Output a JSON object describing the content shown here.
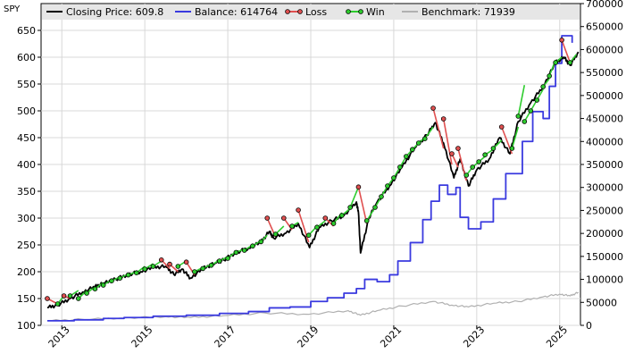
{
  "chart_data": {
    "type": "line",
    "corner_label": "SPY",
    "x_range": [
      "2012-07-01",
      "2025-07-01"
    ],
    "x_ticks": [
      "2013",
      "2015",
      "2017",
      "2019",
      "2021",
      "2023",
      "2025"
    ],
    "left_axis": {
      "ylim": [
        100,
        700
      ],
      "ticks": [
        100,
        150,
        200,
        250,
        300,
        350,
        400,
        450,
        500,
        550,
        600,
        650
      ]
    },
    "right_axis": {
      "ylim": [
        0,
        700000
      ],
      "ticks": [
        0,
        50000,
        100000,
        150000,
        200000,
        250000,
        300000,
        350000,
        400000,
        450000,
        500000,
        550000,
        600000,
        650000,
        700000
      ]
    },
    "grid": true,
    "legend": {
      "placement": "top",
      "entries": [
        {
          "key": "closing",
          "label": "Closing Price: 609.8",
          "color": "#000000"
        },
        {
          "key": "balance",
          "label": "Balance: 614764",
          "color": "#3a3adf"
        },
        {
          "key": "loss",
          "label": "Loss",
          "color": "#e05050"
        },
        {
          "key": "win",
          "label": "Win",
          "color": "#2ecc2e"
        },
        {
          "key": "benchmark",
          "label": "Benchmark: 71939",
          "color": "#b0b0b0"
        }
      ]
    },
    "series": [
      {
        "name": "Closing Price: 609.8",
        "axis": "left",
        "color": "#000000",
        "points": [
          [
            2012.65,
            133
          ],
          [
            2012.9,
            138
          ],
          [
            2013.2,
            150
          ],
          [
            2013.5,
            162
          ],
          [
            2013.8,
            172
          ],
          [
            2014.0,
            178
          ],
          [
            2014.3,
            186
          ],
          [
            2014.6,
            195
          ],
          [
            2014.9,
            200
          ],
          [
            2015.2,
            208
          ],
          [
            2015.5,
            210
          ],
          [
            2015.7,
            195
          ],
          [
            2015.9,
            205
          ],
          [
            2016.1,
            188
          ],
          [
            2016.4,
            206
          ],
          [
            2016.7,
            216
          ],
          [
            2016.9,
            222
          ],
          [
            2017.2,
            236
          ],
          [
            2017.5,
            244
          ],
          [
            2017.8,
            255
          ],
          [
            2018.0,
            275
          ],
          [
            2018.1,
            263
          ],
          [
            2018.4,
            272
          ],
          [
            2018.7,
            290
          ],
          [
            2018.97,
            245
          ],
          [
            2019.2,
            282
          ],
          [
            2019.5,
            295
          ],
          [
            2019.8,
            305
          ],
          [
            2020.1,
            330
          ],
          [
            2020.15,
            310
          ],
          [
            2020.2,
            235
          ],
          [
            2020.4,
            300
          ],
          [
            2020.6,
            330
          ],
          [
            2020.9,
            360
          ],
          [
            2021.2,
            395
          ],
          [
            2021.5,
            430
          ],
          [
            2021.8,
            455
          ],
          [
            2022.0,
            478
          ],
          [
            2022.2,
            440
          ],
          [
            2022.45,
            375
          ],
          [
            2022.6,
            410
          ],
          [
            2022.8,
            360
          ],
          [
            2023.0,
            390
          ],
          [
            2023.3,
            410
          ],
          [
            2023.55,
            450
          ],
          [
            2023.8,
            420
          ],
          [
            2024.0,
            480
          ],
          [
            2024.3,
            515
          ],
          [
            2024.6,
            545
          ],
          [
            2024.9,
            590
          ],
          [
            2025.1,
            600
          ],
          [
            2025.25,
            585
          ],
          [
            2025.45,
            609.8
          ]
        ]
      },
      {
        "name": "Balance: 614764",
        "axis": "right",
        "color": "#3a3adf",
        "points": [
          [
            2012.65,
            10000
          ],
          [
            2013.3,
            12000
          ],
          [
            2014.0,
            15000
          ],
          [
            2014.5,
            17000
          ],
          [
            2015.2,
            20000
          ],
          [
            2016.0,
            22000
          ],
          [
            2016.8,
            26000
          ],
          [
            2017.5,
            30000
          ],
          [
            2018.0,
            38000
          ],
          [
            2018.5,
            40000
          ],
          [
            2019.0,
            52000
          ],
          [
            2019.4,
            60000
          ],
          [
            2019.8,
            70000
          ],
          [
            2020.1,
            80000
          ],
          [
            2020.3,
            100000
          ],
          [
            2020.6,
            95000
          ],
          [
            2020.9,
            110000
          ],
          [
            2021.1,
            140000
          ],
          [
            2021.4,
            180000
          ],
          [
            2021.7,
            230000
          ],
          [
            2021.9,
            270000
          ],
          [
            2022.1,
            305000
          ],
          [
            2022.3,
            285000
          ],
          [
            2022.5,
            300000
          ],
          [
            2022.6,
            235000
          ],
          [
            2022.8,
            210000
          ],
          [
            2023.1,
            225000
          ],
          [
            2023.4,
            275000
          ],
          [
            2023.7,
            330000
          ],
          [
            2023.95,
            330000
          ],
          [
            2024.1,
            400000
          ],
          [
            2024.35,
            465000
          ],
          [
            2024.6,
            450000
          ],
          [
            2024.75,
            520000
          ],
          [
            2024.9,
            570000
          ],
          [
            2025.05,
            630000
          ],
          [
            2025.3,
            614764
          ]
        ]
      },
      {
        "name": "Benchmark: 71939",
        "axis": "right",
        "color": "#b0b0b0",
        "points": [
          [
            2012.65,
            10000
          ],
          [
            2013.5,
            13000
          ],
          [
            2014.5,
            16000
          ],
          [
            2015.5,
            19000
          ],
          [
            2016.1,
            17000
          ],
          [
            2016.9,
            21000
          ],
          [
            2017.9,
            27000
          ],
          [
            2018.95,
            24000
          ],
          [
            2019.9,
            32000
          ],
          [
            2020.2,
            22000
          ],
          [
            2020.6,
            32000
          ],
          [
            2021.2,
            42000
          ],
          [
            2021.95,
            52000
          ],
          [
            2022.4,
            44000
          ],
          [
            2022.8,
            40000
          ],
          [
            2023.4,
            48000
          ],
          [
            2024.0,
            52000
          ],
          [
            2024.6,
            62000
          ],
          [
            2025.0,
            68000
          ],
          [
            2025.25,
            64000
          ],
          [
            2025.45,
            71939
          ]
        ]
      }
    ],
    "trades": [
      [
        2012.65,
        150,
        2012.9,
        140
      ],
      [
        2012.9,
        140,
        2013.05,
        155
      ],
      [
        2013.05,
        155,
        2013.2,
        150
      ],
      [
        2013.2,
        155,
        2013.4,
        165
      ],
      [
        2013.4,
        150,
        2013.6,
        165
      ],
      [
        2013.6,
        160,
        2013.8,
        172
      ],
      [
        2013.8,
        168,
        2014.0,
        180
      ],
      [
        2014.0,
        175,
        2014.2,
        185
      ],
      [
        2014.2,
        183,
        2014.4,
        190
      ],
      [
        2014.4,
        188,
        2014.6,
        196
      ],
      [
        2014.6,
        194,
        2014.8,
        200
      ],
      [
        2014.8,
        198,
        2015.0,
        210
      ],
      [
        2015.0,
        205,
        2015.2,
        215
      ],
      [
        2015.2,
        210,
        2015.4,
        220
      ],
      [
        2015.4,
        222,
        2015.6,
        206
      ],
      [
        2015.6,
        214,
        2015.8,
        200
      ],
      [
        2015.8,
        210,
        2016.0,
        220
      ],
      [
        2016.0,
        218,
        2016.2,
        194
      ],
      [
        2016.2,
        200,
        2016.4,
        208
      ],
      [
        2016.4,
        206,
        2016.6,
        214
      ],
      [
        2016.6,
        212,
        2016.8,
        222
      ],
      [
        2016.8,
        220,
        2017.0,
        228
      ],
      [
        2017.0,
        225,
        2017.2,
        238
      ],
      [
        2017.2,
        236,
        2017.4,
        242
      ],
      [
        2017.4,
        240,
        2017.6,
        250
      ],
      [
        2017.6,
        248,
        2017.8,
        258
      ],
      [
        2017.8,
        256,
        2017.95,
        268
      ],
      [
        2017.95,
        300,
        2018.15,
        265
      ],
      [
        2018.15,
        270,
        2018.35,
        285
      ],
      [
        2018.35,
        300,
        2018.55,
        278
      ],
      [
        2018.55,
        285,
        2018.7,
        292
      ],
      [
        2018.7,
        315,
        2018.95,
        255
      ],
      [
        2018.95,
        268,
        2019.15,
        285
      ],
      [
        2019.15,
        283,
        2019.35,
        295
      ],
      [
        2019.35,
        300,
        2019.55,
        285
      ],
      [
        2019.55,
        290,
        2019.75,
        310
      ],
      [
        2019.75,
        305,
        2019.95,
        318
      ],
      [
        2019.95,
        320,
        2020.15,
        358
      ],
      [
        2020.15,
        358,
        2020.35,
        290
      ],
      [
        2020.35,
        295,
        2020.55,
        320
      ],
      [
        2020.55,
        320,
        2020.7,
        340
      ],
      [
        2020.7,
        340,
        2020.85,
        360
      ],
      [
        2020.85,
        360,
        2021.0,
        375
      ],
      [
        2021.0,
        375,
        2021.15,
        395
      ],
      [
        2021.15,
        395,
        2021.3,
        415
      ],
      [
        2021.3,
        415,
        2021.45,
        428
      ],
      [
        2021.45,
        428,
        2021.6,
        440
      ],
      [
        2021.6,
        440,
        2021.75,
        450
      ],
      [
        2021.75,
        448,
        2021.95,
        470
      ],
      [
        2021.95,
        505,
        2022.2,
        430
      ],
      [
        2022.2,
        485,
        2022.4,
        400
      ],
      [
        2022.4,
        420,
        2022.55,
        395
      ],
      [
        2022.55,
        430,
        2022.75,
        370
      ],
      [
        2022.75,
        380,
        2022.9,
        395
      ],
      [
        2022.9,
        395,
        2023.05,
        405
      ],
      [
        2023.05,
        405,
        2023.2,
        415
      ],
      [
        2023.2,
        418,
        2023.4,
        428
      ],
      [
        2023.4,
        430,
        2023.6,
        445
      ],
      [
        2023.6,
        470,
        2023.85,
        420
      ],
      [
        2023.85,
        430,
        2024.0,
        470
      ],
      [
        2024.0,
        490,
        2024.15,
        548
      ],
      [
        2024.15,
        480,
        2024.3,
        500
      ],
      [
        2024.3,
        500,
        2024.45,
        520
      ],
      [
        2024.45,
        520,
        2024.6,
        540
      ],
      [
        2024.6,
        545,
        2024.75,
        560
      ],
      [
        2024.75,
        565,
        2024.9,
        595
      ],
      [
        2024.9,
        590,
        2025.05,
        600
      ],
      [
        2025.05,
        632,
        2025.25,
        590
      ],
      [
        2025.25,
        590,
        2025.4,
        605
      ]
    ]
  }
}
